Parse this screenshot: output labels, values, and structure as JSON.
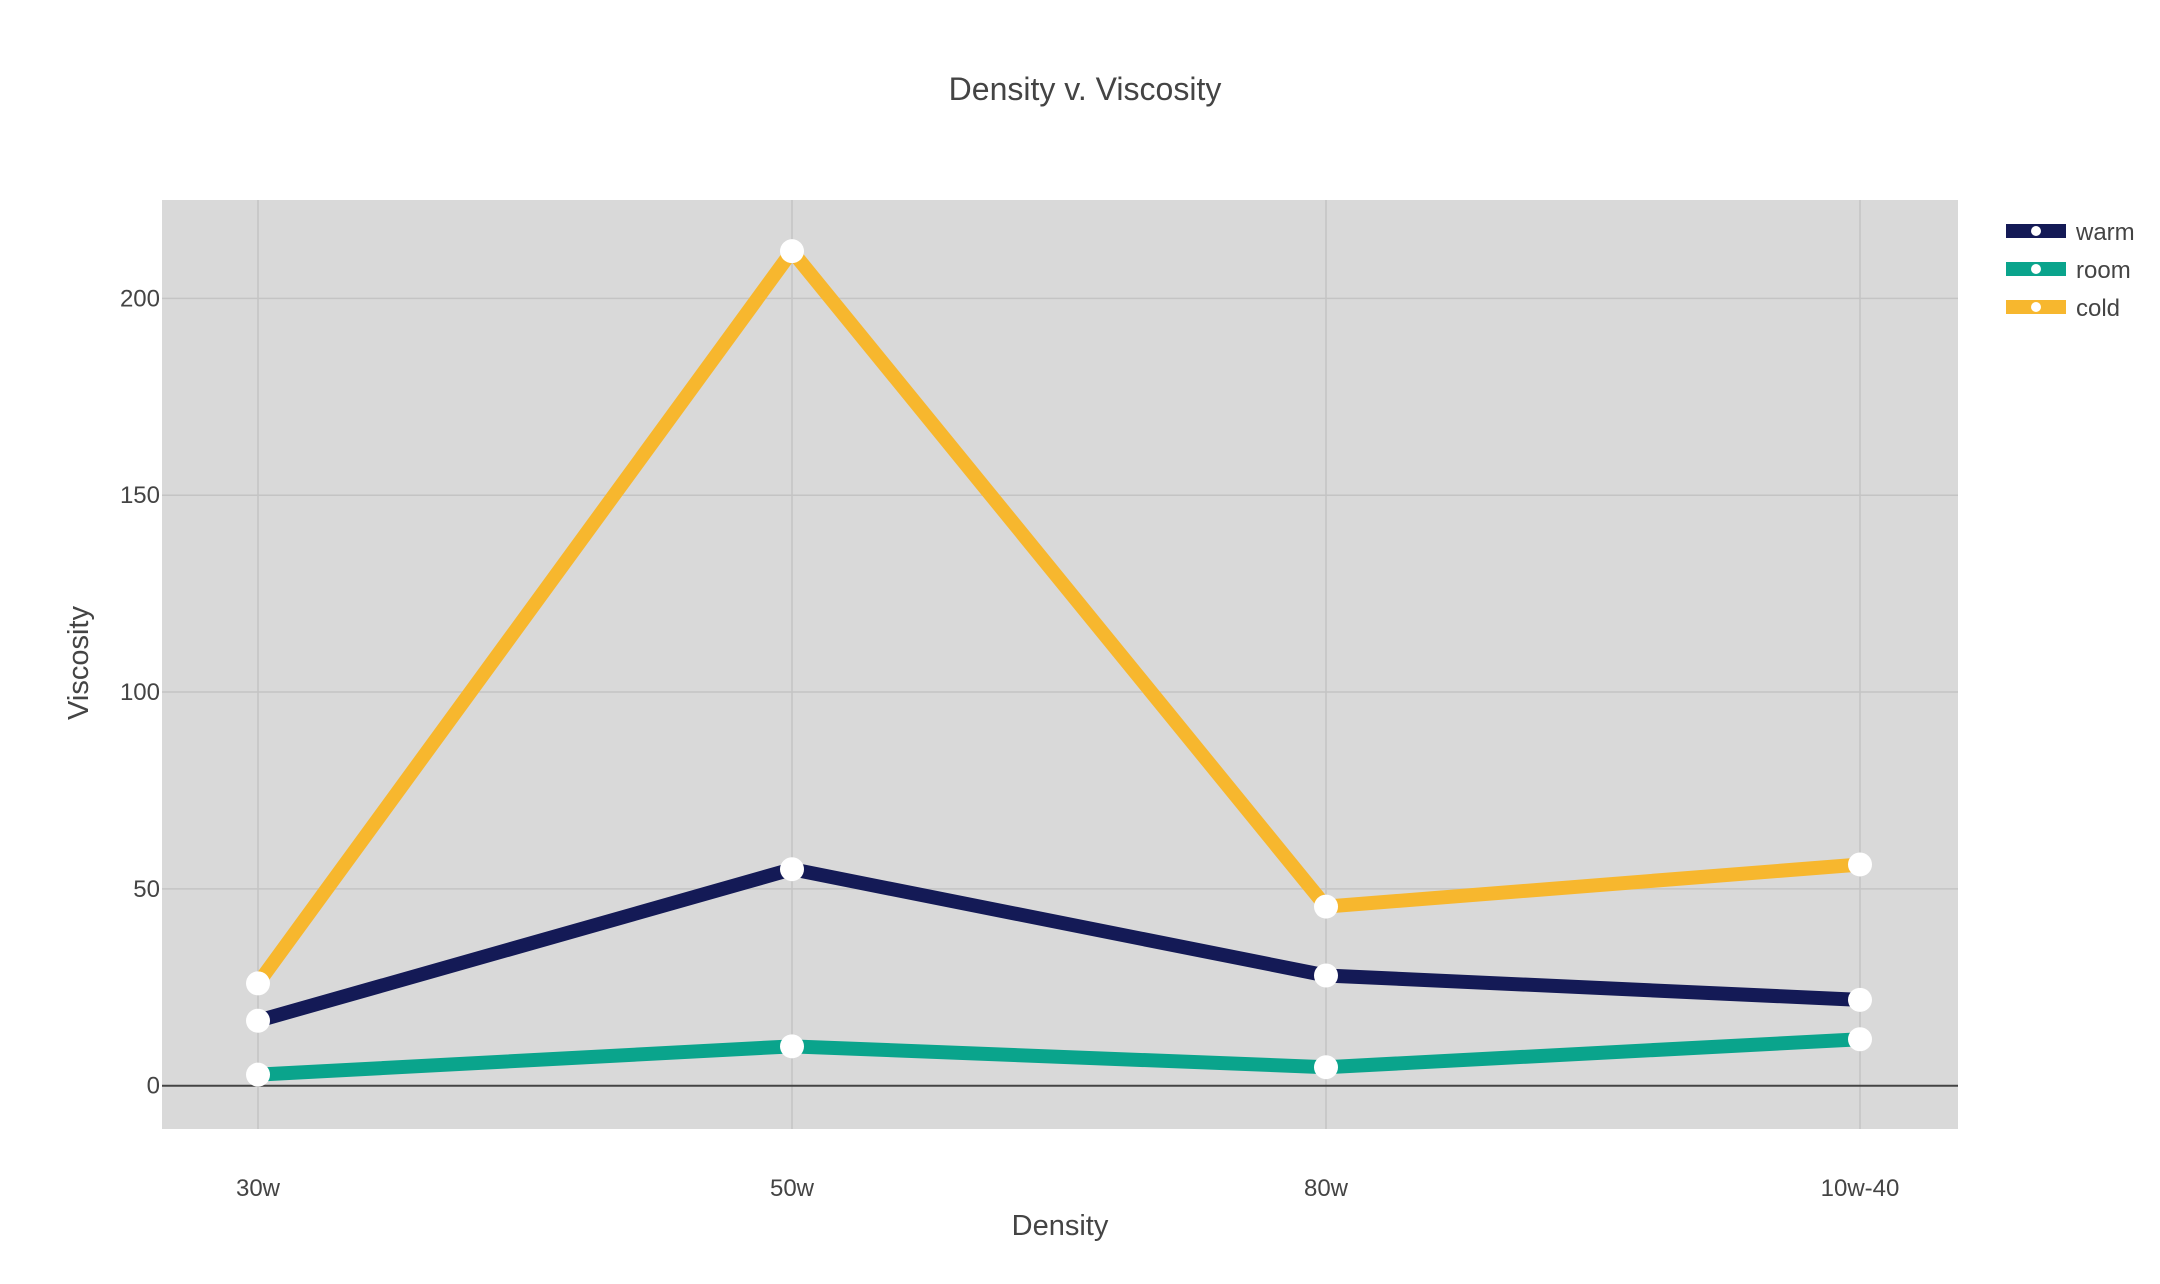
{
  "chart_data": {
    "type": "line",
    "title": "Density v. Viscosity",
    "xlabel": "Density",
    "ylabel": "Viscosity",
    "categories": [
      "30w",
      "50w",
      "80w",
      "10w-40"
    ],
    "yticks": [
      0,
      50,
      100,
      150,
      200
    ],
    "ylim": [
      -11,
      225
    ],
    "grid": true,
    "legend_position": "top-right",
    "plot_background": "#d9d9d9",
    "marker_color": "#ffffff",
    "series": [
      {
        "name": "warm",
        "color": "#141a56",
        "values": [
          16.5,
          55.0,
          28.0,
          21.8
        ]
      },
      {
        "name": "room",
        "color": "#0aa48c",
        "values": [
          2.8,
          10.0,
          4.7,
          11.8
        ]
      },
      {
        "name": "cold",
        "color": "#f7b72e",
        "values": [
          26.0,
          212.0,
          45.5,
          56.2
        ]
      }
    ]
  }
}
